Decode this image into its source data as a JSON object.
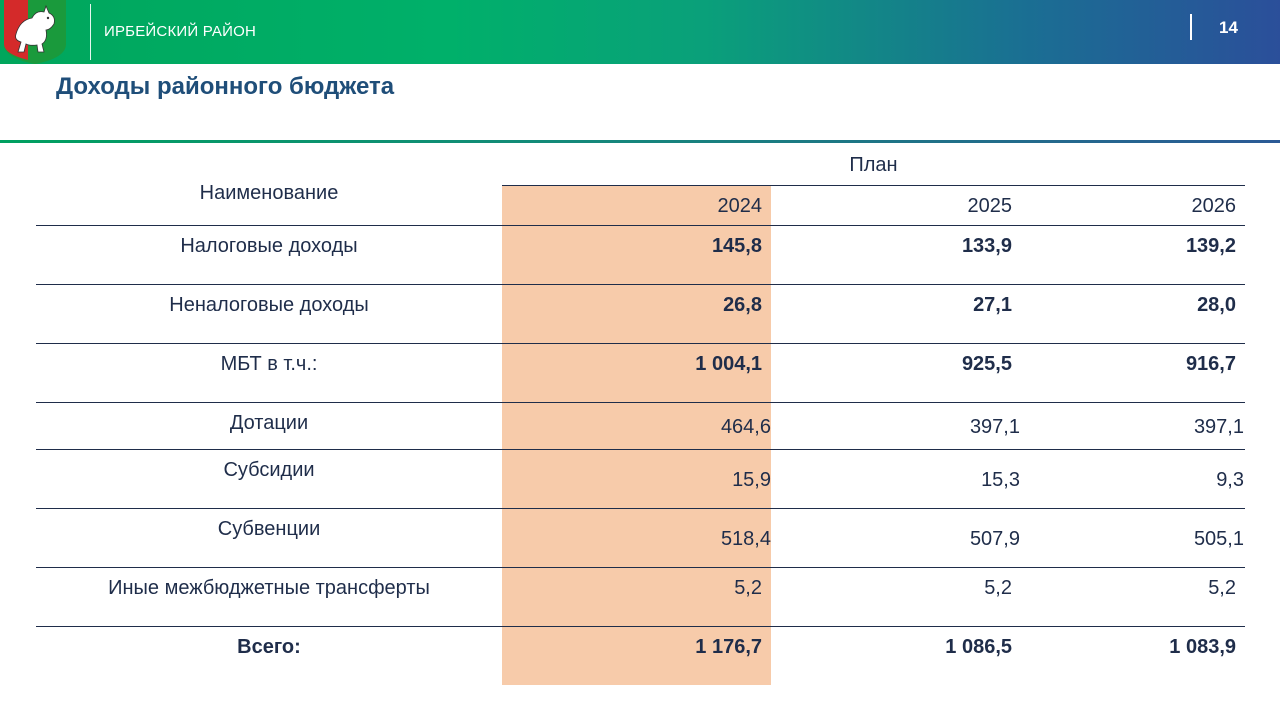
{
  "header": {
    "region": "ИРБЕЙСКИЙ РАЙОН",
    "page_number": "14",
    "emblem_icon": "coat-of-arms-icon",
    "colors": {
      "bar_start": "#00a65c",
      "bar_end": "#2b4f9a",
      "highlight": "#f7cbaa"
    }
  },
  "title": "Доходы районного бюджета",
  "table": {
    "name_header": "Наименование",
    "plan_header": "План",
    "years": [
      "2024",
      "2025",
      "2026"
    ],
    "rows": [
      {
        "name": "Налоговые доходы",
        "values": [
          "145,8",
          "133,9",
          "139,2"
        ]
      },
      {
        "name": "Неналоговые доходы",
        "values": [
          "26,8",
          "27,1",
          "28,0"
        ]
      },
      {
        "name": "МБТ в т.ч.:",
        "values": [
          "1 004,1",
          "925,5",
          "916,7"
        ]
      },
      {
        "name": "Дотации",
        "values": [
          "464,6",
          "397,1",
          "397,1"
        ]
      },
      {
        "name": "Субсидии",
        "values": [
          "15,9",
          "15,3",
          "9,3"
        ]
      },
      {
        "name": "Субвенции",
        "values": [
          "518,4",
          "507,9",
          "505,1"
        ]
      },
      {
        "name": "Иные межбюджетные трансферты",
        "values": [
          "5,2",
          "5,2",
          "5,2"
        ]
      }
    ],
    "total": {
      "name": "Всего:",
      "values": [
        "1 176,7",
        "1 086,5",
        "1 083,9"
      ]
    }
  }
}
